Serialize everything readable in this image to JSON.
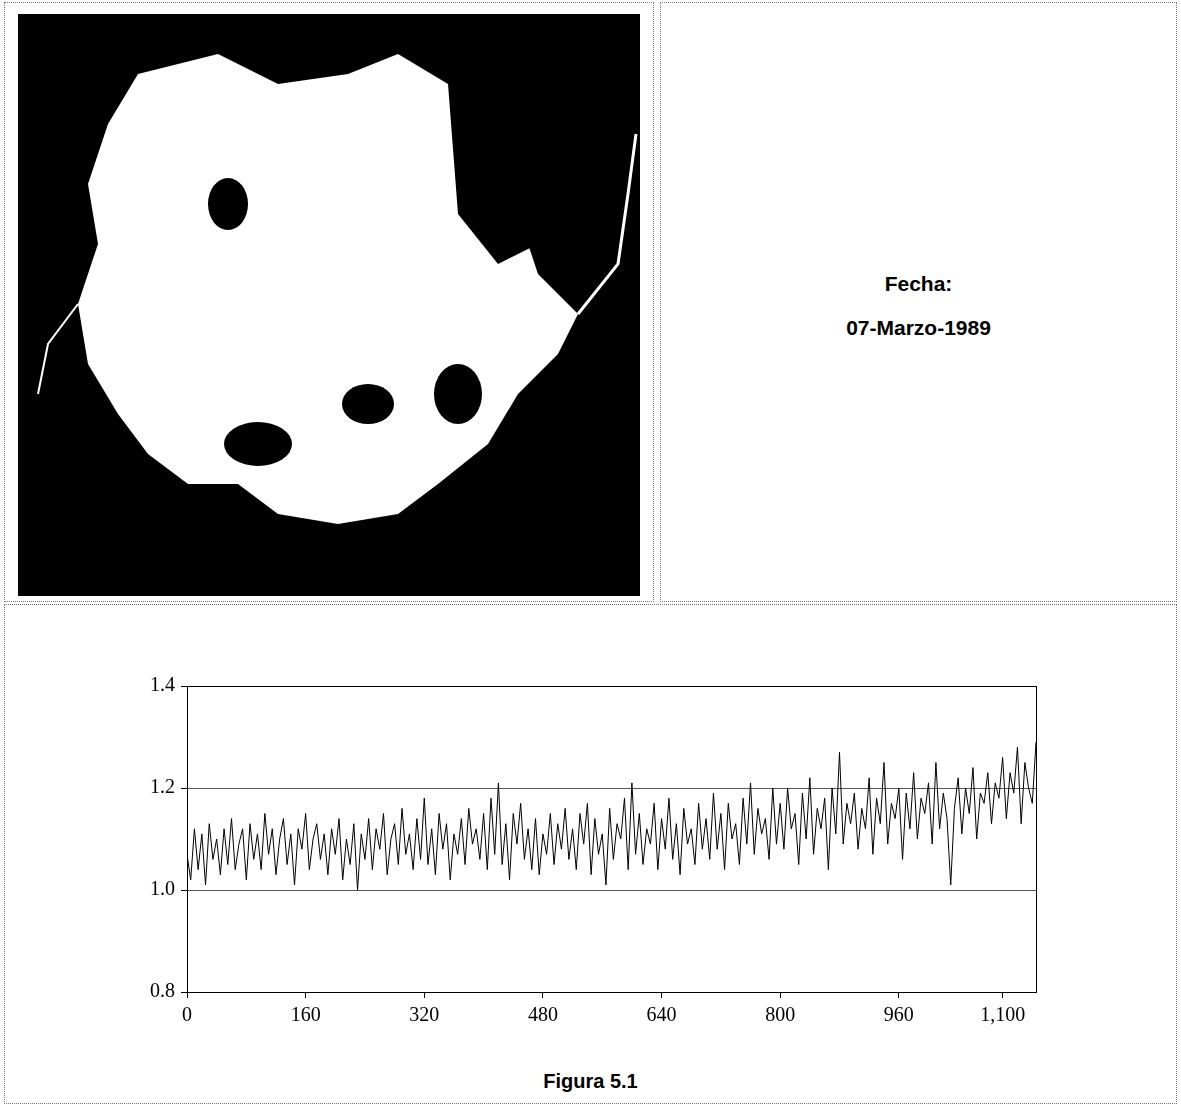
{
  "image_panel": {
    "date_label": "Fecha:",
    "date": "07-Marzo-1989"
  },
  "caption": "Figura 5.1",
  "chart_data": {
    "type": "line",
    "color": "#000000",
    "grid": true,
    "xlim": [
      0,
      1145
    ],
    "xticks": [
      0,
      160,
      320,
      480,
      640,
      800,
      960,
      {
        "value": 1100,
        "label": "1,100"
      }
    ],
    "ylim": [
      0.8,
      1.4
    ],
    "yticks": [
      0.8,
      {
        "value": 1,
        "label": "1.0"
      },
      1.2,
      1.4
    ],
    "x": [
      0,
      5,
      10,
      15,
      20,
      25,
      30,
      35,
      40,
      45,
      50,
      55,
      60,
      65,
      70,
      75,
      80,
      85,
      90,
      95,
      100,
      105,
      110,
      115,
      120,
      125,
      130,
      135,
      140,
      145,
      150,
      155,
      160,
      165,
      170,
      175,
      180,
      185,
      190,
      195,
      200,
      205,
      210,
      215,
      220,
      225,
      230,
      235,
      240,
      245,
      250,
      255,
      260,
      265,
      270,
      275,
      280,
      285,
      290,
      295,
      300,
      305,
      310,
      315,
      320,
      325,
      330,
      335,
      340,
      345,
      350,
      355,
      360,
      365,
      370,
      375,
      380,
      385,
      390,
      395,
      400,
      405,
      410,
      415,
      420,
      425,
      430,
      435,
      440,
      445,
      450,
      455,
      460,
      465,
      470,
      475,
      480,
      485,
      490,
      495,
      500,
      505,
      510,
      515,
      520,
      525,
      530,
      535,
      540,
      545,
      550,
      555,
      560,
      565,
      570,
      575,
      580,
      585,
      590,
      595,
      600,
      605,
      610,
      615,
      620,
      625,
      630,
      635,
      640,
      645,
      650,
      655,
      660,
      665,
      670,
      675,
      680,
      685,
      690,
      695,
      700,
      705,
      710,
      715,
      720,
      725,
      730,
      735,
      740,
      745,
      750,
      755,
      760,
      765,
      770,
      775,
      780,
      785,
      790,
      795,
      800,
      805,
      810,
      815,
      820,
      825,
      830,
      835,
      840,
      845,
      850,
      855,
      860,
      865,
      870,
      875,
      880,
      885,
      890,
      895,
      900,
      905,
      910,
      915,
      920,
      925,
      930,
      935,
      940,
      945,
      950,
      955,
      960,
      965,
      970,
      975,
      980,
      985,
      990,
      995,
      1000,
      1005,
      1010,
      1015,
      1020,
      1025,
      1030,
      1035,
      1040,
      1045,
      1050,
      1055,
      1060,
      1065,
      1070,
      1075,
      1080,
      1085,
      1090,
      1095,
      1100,
      1105,
      1110,
      1115,
      1120,
      1125,
      1130,
      1135,
      1140,
      1145
    ],
    "values": [
      1.07,
      1.02,
      1.12,
      1.04,
      1.11,
      1.01,
      1.13,
      1.06,
      1.1,
      1.03,
      1.12,
      1.05,
      1.14,
      1.04,
      1.09,
      1.12,
      1.02,
      1.13,
      1.06,
      1.11,
      1.04,
      1.15,
      1.07,
      1.12,
      1.03,
      1.1,
      1.14,
      1.05,
      1.11,
      1.01,
      1.12,
      1.08,
      1.15,
      1.04,
      1.1,
      1.13,
      1.06,
      1.11,
      1.03,
      1.12,
      1.07,
      1.14,
      1.02,
      1.1,
      1.05,
      1.13,
      1.0,
      1.11,
      1.06,
      1.14,
      1.04,
      1.12,
      1.08,
      1.15,
      1.03,
      1.1,
      1.13,
      1.05,
      1.16,
      1.07,
      1.11,
      1.04,
      1.14,
      1.06,
      1.18,
      1.05,
      1.12,
      1.03,
      1.15,
      1.08,
      1.13,
      1.02,
      1.11,
      1.07,
      1.14,
      1.05,
      1.16,
      1.09,
      1.12,
      1.06,
      1.15,
      1.04,
      1.18,
      1.07,
      1.21,
      1.05,
      1.13,
      1.02,
      1.15,
      1.09,
      1.17,
      1.06,
      1.12,
      1.04,
      1.14,
      1.03,
      1.11,
      1.07,
      1.15,
      1.05,
      1.13,
      1.08,
      1.16,
      1.06,
      1.12,
      1.04,
      1.15,
      1.09,
      1.17,
      1.03,
      1.14,
      1.07,
      1.11,
      1.01,
      1.16,
      1.06,
      1.13,
      1.1,
      1.18,
      1.04,
      1.21,
      1.07,
      1.15,
      1.05,
      1.12,
      1.09,
      1.17,
      1.04,
      1.14,
      1.08,
      1.18,
      1.06,
      1.13,
      1.03,
      1.16,
      1.09,
      1.12,
      1.05,
      1.17,
      1.08,
      1.14,
      1.06,
      1.19,
      1.08,
      1.15,
      1.04,
      1.17,
      1.1,
      1.13,
      1.05,
      1.18,
      1.09,
      1.21,
      1.07,
      1.16,
      1.11,
      1.14,
      1.06,
      1.2,
      1.09,
      1.17,
      1.08,
      1.2,
      1.12,
      1.15,
      1.05,
      1.19,
      1.1,
      1.22,
      1.07,
      1.16,
      1.12,
      1.18,
      1.04,
      1.2,
      1.11,
      1.27,
      1.09,
      1.17,
      1.13,
      1.19,
      1.08,
      1.16,
      1.12,
      1.22,
      1.07,
      1.18,
      1.13,
      1.25,
      1.09,
      1.17,
      1.14,
      1.2,
      1.06,
      1.19,
      1.12,
      1.23,
      1.1,
      1.18,
      1.15,
      1.21,
      1.09,
      1.25,
      1.12,
      1.19,
      1.14,
      1.01,
      1.16,
      1.22,
      1.11,
      1.2,
      1.15,
      1.24,
      1.1,
      1.19,
      1.17,
      1.23,
      1.13,
      1.21,
      1.18,
      1.26,
      1.14,
      1.23,
      1.19,
      1.28,
      1.13,
      1.25,
      1.2,
      1.17,
      1.29
    ]
  }
}
